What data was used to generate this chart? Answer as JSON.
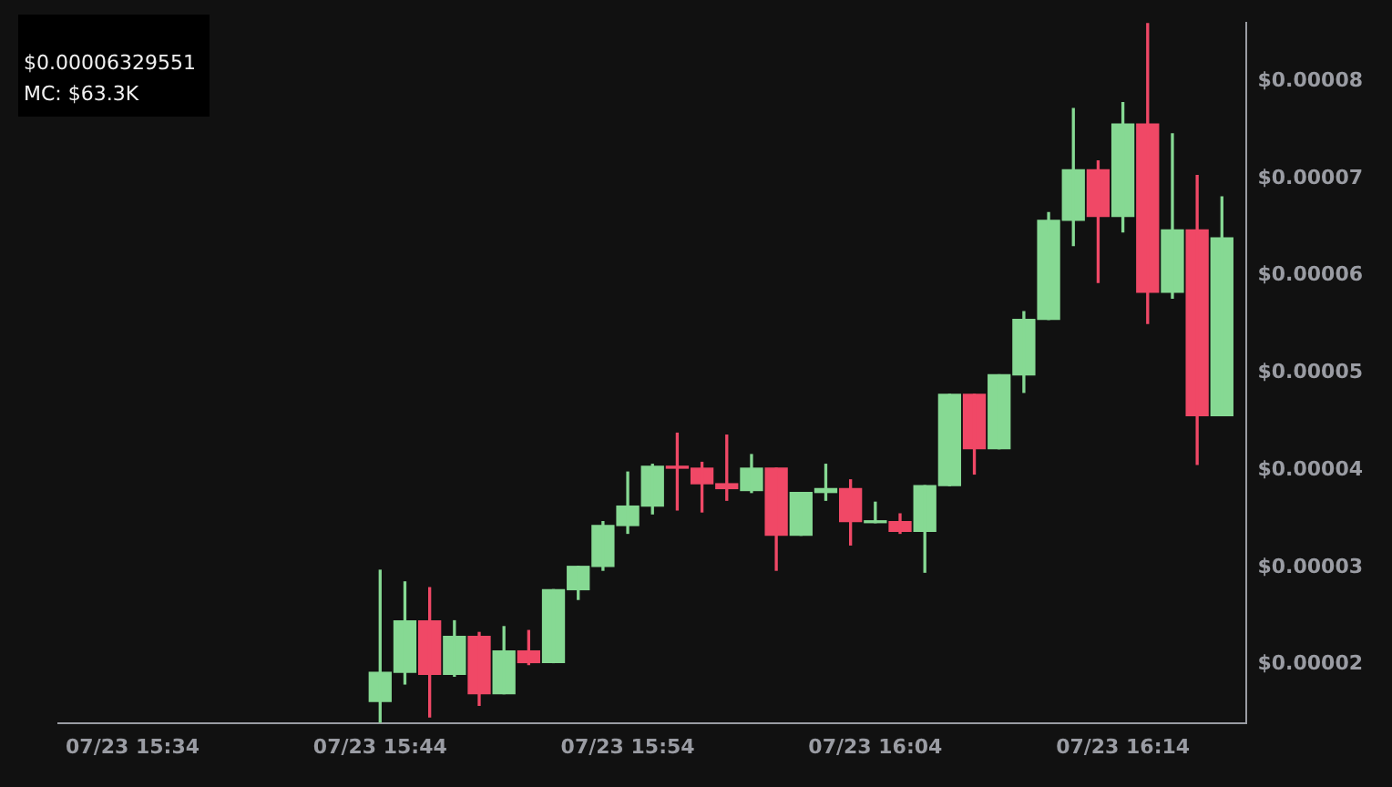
{
  "chart_data": {
    "type": "candlestick",
    "annotations": [
      "$0.00006329551",
      "MC: $63.3K"
    ],
    "x": [
      "--07-23T15:44",
      "--07-23T15:45",
      "--07-23T15:46",
      "--07-23T15:47",
      "--07-23T15:48",
      "--07-23T15:49",
      "--07-23T15:50",
      "--07-23T15:51",
      "--07-23T15:52",
      "--07-23T15:53",
      "--07-23T15:54",
      "--07-23T15:55",
      "--07-23T15:56",
      "--07-23T15:57",
      "--07-23T15:58",
      "--07-23T15:59",
      "--07-23T16:00",
      "--07-23T16:01",
      "--07-23T16:02",
      "--07-23T16:03",
      "--07-23T16:04",
      "--07-23T16:05",
      "--07-23T16:06",
      "--07-23T16:07",
      "--07-23T16:08",
      "--07-23T16:09",
      "--07-23T16:10",
      "--07-23T16:11",
      "--07-23T16:12",
      "--07-23T16:13",
      "--07-23T16:14",
      "--07-23T16:15",
      "--07-23T16:16",
      "--07-23T16:17",
      "--07-23T16:18"
    ],
    "ohlc": [
      [
        1.62e-05,
        2.97e-05,
        1.4e-05,
        1.92e-05
      ],
      [
        1.92e-05,
        2.85e-05,
        1.8e-05,
        2.45e-05
      ],
      [
        2.45e-05,
        2.79e-05,
        1.46e-05,
        1.9e-05
      ],
      [
        1.9e-05,
        2.45e-05,
        1.88e-05,
        2.29e-05
      ],
      [
        2.29e-05,
        2.33e-05,
        1.58e-05,
        1.7e-05
      ],
      [
        1.7e-05,
        2.39e-05,
        1.7e-05,
        2.14e-05
      ],
      [
        2.14e-05,
        2.35e-05,
        2e-05,
        2.02e-05
      ],
      [
        2.02e-05,
        2.77e-05,
        2.02e-05,
        2.77e-05
      ],
      [
        2.77e-05,
        3.01e-05,
        2.67e-05,
        3.01e-05
      ],
      [
        3.01e-05,
        3.47e-05,
        2.97e-05,
        3.43e-05
      ],
      [
        3.43e-05,
        3.98e-05,
        3.35e-05,
        3.63e-05
      ],
      [
        3.63e-05,
        4.06e-05,
        3.55e-05,
        4.04e-05
      ],
      [
        4.04e-05,
        4.38e-05,
        3.59e-05,
        4.02e-05
      ],
      [
        4.02e-05,
        4.08e-05,
        3.57e-05,
        3.86e-05
      ],
      [
        3.86e-05,
        4.36e-05,
        3.69e-05,
        3.81e-05
      ],
      [
        3.79e-05,
        4.16e-05,
        3.77e-05,
        4.02e-05
      ],
      [
        4.02e-05,
        4.02e-05,
        2.97e-05,
        3.33e-05
      ],
      [
        3.33e-05,
        3.77e-05,
        3.33e-05,
        3.77e-05
      ],
      [
        3.77e-05,
        4.06e-05,
        3.69e-05,
        3.81e-05
      ],
      [
        3.81e-05,
        3.9e-05,
        3.23e-05,
        3.47e-05
      ],
      [
        3.46e-05,
        3.67e-05,
        3.46e-05,
        3.47e-05
      ],
      [
        3.47e-05,
        3.55e-05,
        3.35e-05,
        3.37e-05
      ],
      [
        3.37e-05,
        3.84e-05,
        2.95e-05,
        3.84e-05
      ],
      [
        3.84e-05,
        4.78e-05,
        3.84e-05,
        4.78e-05
      ],
      [
        4.78e-05,
        4.78e-05,
        3.96e-05,
        4.22e-05
      ],
      [
        4.22e-05,
        4.98e-05,
        4.22e-05,
        4.98e-05
      ],
      [
        4.98e-05,
        5.63e-05,
        4.8e-05,
        5.55e-05
      ],
      [
        5.55e-05,
        6.65e-05,
        5.55e-05,
        6.57e-05
      ],
      [
        6.57e-05,
        7.72e-05,
        6.31e-05,
        7.09e-05
      ],
      [
        7.09e-05,
        7.18e-05,
        5.93e-05,
        6.61e-05
      ],
      [
        6.61e-05,
        7.78e-05,
        6.45e-05,
        7.56e-05
      ],
      [
        7.56e-05,
        8.6e-05,
        5.51e-05,
        5.83e-05
      ],
      [
        5.83e-05,
        7.46e-05,
        5.77e-05,
        6.47e-05
      ],
      [
        6.47e-05,
        7.03e-05,
        4.06e-05,
        4.56e-05
      ],
      [
        4.56e-05,
        6.81e-05,
        4.56e-05,
        6.39e-05
      ]
    ],
    "colors": [
      "#86d993",
      "#86d993",
      "#f04866",
      "#86d993",
      "#f04866",
      "#86d993",
      "#f04866",
      "#86d993",
      "#86d993",
      "#86d993",
      "#86d993",
      "#86d993",
      "#f04866",
      "#f04866",
      "#f04866",
      "#86d993",
      "#f04866",
      "#86d993",
      "#86d993",
      "#f04866",
      "#86d993",
      "#f04866",
      "#86d993",
      "#86d993",
      "#f04866",
      "#86d993",
      "#86d993",
      "#86d993",
      "#86d993",
      "#f04866",
      "#86d993",
      "#f04866",
      "#86d993",
      "#f04866",
      "#86d993"
    ],
    "xlim": [
      "--07-23T15:31",
      "--07-23T16:19"
    ],
    "xticks": [
      {
        "value": "--07-23T15:34",
        "label": "07/23 15:34"
      },
      {
        "value": "--07-23T15:44",
        "label": "07/23 15:44"
      },
      {
        "value": "--07-23T15:54",
        "label": "07/23 15:54"
      },
      {
        "value": "--07-23T16:04",
        "label": "07/23 16:04"
      },
      {
        "value": "--07-23T16:14",
        "label": "07/23 16:14"
      }
    ],
    "ylim": [
      1.4e-05,
      8.6e-05
    ],
    "yticks": [
      {
        "value": 2e-05,
        "label": "$0.00002"
      },
      {
        "value": 3e-05,
        "label": "$0.00003"
      },
      {
        "value": 4e-05,
        "label": "$0.00004"
      },
      {
        "value": 5e-05,
        "label": "$0.00005"
      },
      {
        "value": 6e-05,
        "label": "$0.00006"
      },
      {
        "value": 7e-05,
        "label": "$0.00007"
      },
      {
        "value": 8e-05,
        "label": "$0.00008"
      }
    ],
    "grid": false,
    "legend": false
  }
}
